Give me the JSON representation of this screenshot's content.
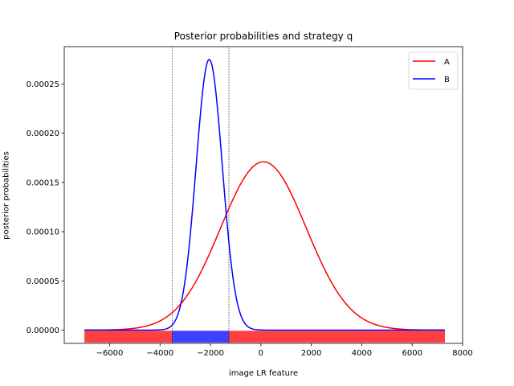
{
  "chart_data": {
    "type": "line",
    "title": "Posterior probabilities and strategy q",
    "xlabel": "image LR feature",
    "ylabel": "posterior probabilities",
    "xlim": [
      -7800,
      8000
    ],
    "ylim": [
      -1.35e-05,
      0.000288
    ],
    "xticks": [
      -6000,
      -4000,
      -2000,
      0,
      2000,
      4000,
      6000,
      8000
    ],
    "xtick_labels": [
      "−6000",
      "−4000",
      "−2000",
      "0",
      "2000",
      "4000",
      "6000",
      "8000"
    ],
    "yticks": [
      0,
      5e-05,
      0.0001,
      0.00015,
      0.0002,
      0.00025
    ],
    "ytick_labels": [
      "0.00000",
      "0.00005",
      "0.00010",
      "0.00015",
      "0.00020",
      "0.00025"
    ],
    "grid": false,
    "legend_position": "top-right",
    "x_range": [
      -7000,
      7300
    ],
    "series": [
      {
        "name": "A",
        "color": "#ff0000",
        "distribution": "gaussian",
        "peak_x": 100,
        "peak_y": 0.000171,
        "spread": 1700
      },
      {
        "name": "B",
        "color": "#0000ff",
        "distribution": "gaussian",
        "peak_x": -2050,
        "peak_y": 0.000275,
        "spread": 520
      }
    ],
    "decision_boundaries": [
      -3520,
      -1270
    ],
    "strategy_q": [
      {
        "from": -7000,
        "to": -3520,
        "class": "A",
        "color": "#ff0000"
      },
      {
        "from": -3520,
        "to": -1270,
        "class": "B",
        "color": "#0000ff"
      },
      {
        "from": -1270,
        "to": 7300,
        "class": "A",
        "color": "#ff0000"
      }
    ]
  }
}
